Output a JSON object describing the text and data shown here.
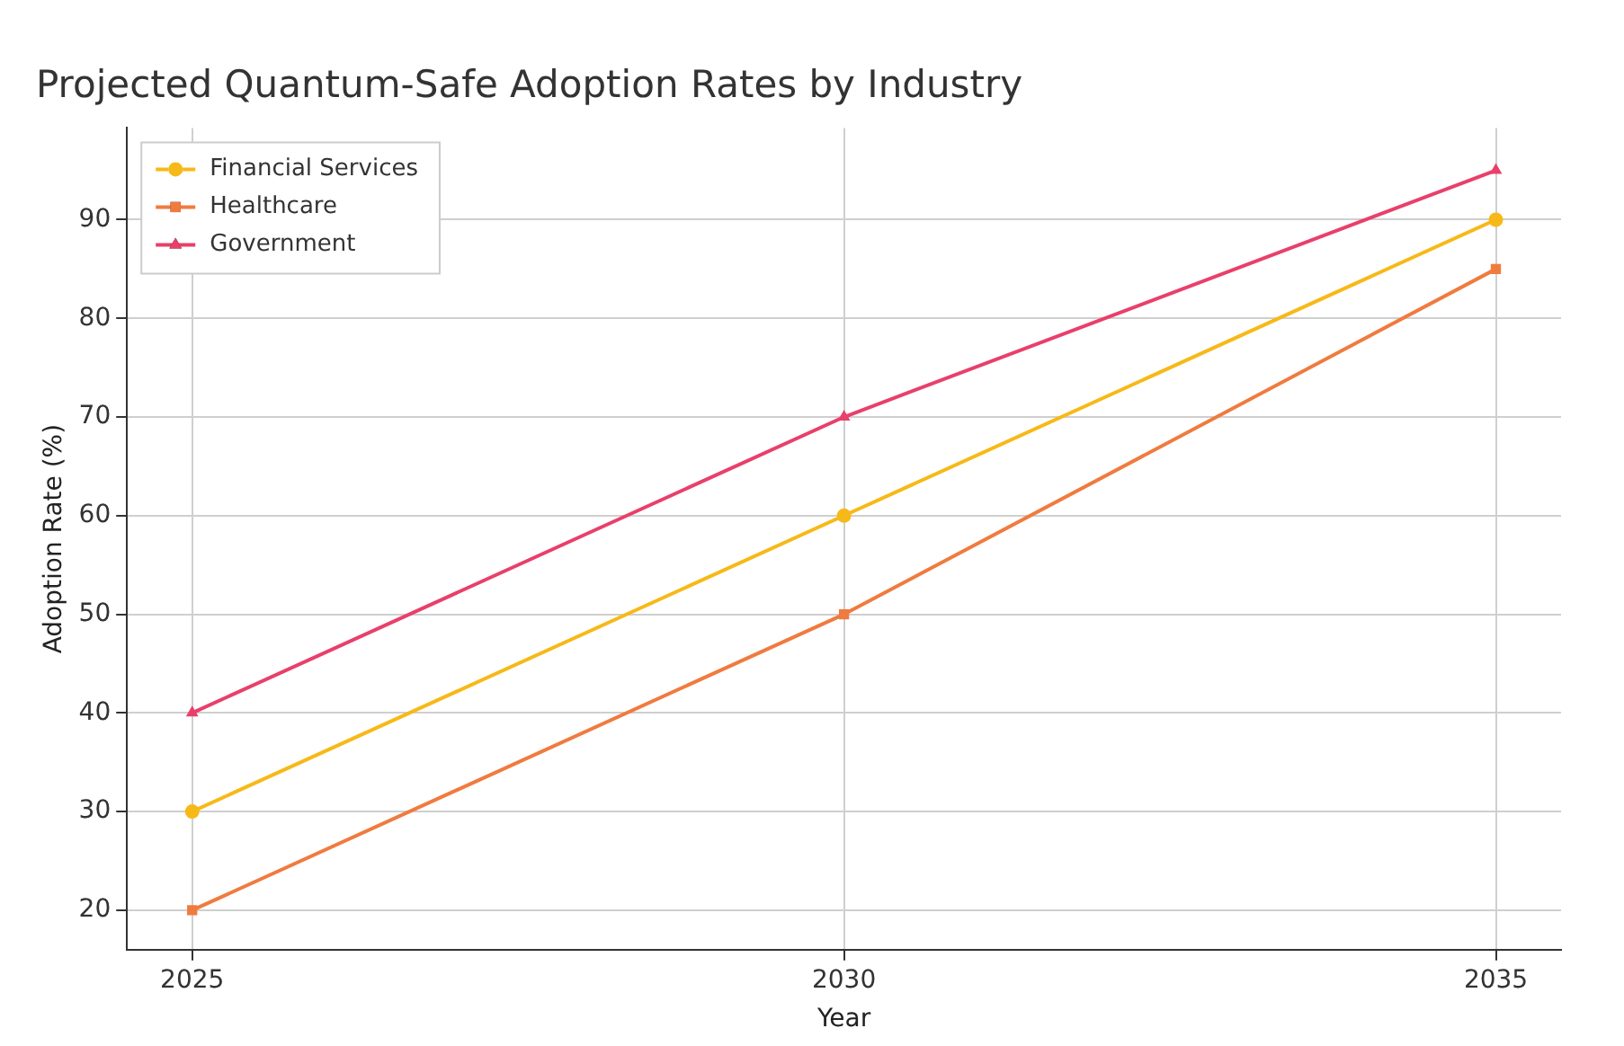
{
  "chart_data": {
    "type": "line",
    "title": "Projected Quantum-Safe Adoption Rates by Industry",
    "xlabel": "Year",
    "ylabel": "Adoption Rate (%)",
    "x": [
      2025,
      2030,
      2035
    ],
    "series": [
      {
        "name": "Financial Services",
        "color": "#f7b918",
        "values": [
          30,
          60,
          90
        ],
        "marker": "circle"
      },
      {
        "name": "Healthcare",
        "color": "#f07b3f",
        "values": [
          20,
          50,
          85
        ],
        "marker": "square"
      },
      {
        "name": "Government",
        "color": "#e8406b",
        "values": [
          40,
          70,
          95
        ],
        "marker": "triangle"
      }
    ],
    "xlim": [
      2024.5,
      2035.5
    ],
    "xticks": [
      2025,
      2030,
      2035
    ],
    "ylim": [
      16,
      99.3
    ],
    "yticks": [
      20,
      30,
      40,
      50,
      60,
      70,
      80,
      90
    ],
    "grid": true,
    "legend": "top left",
    "line_style": "solid"
  }
}
